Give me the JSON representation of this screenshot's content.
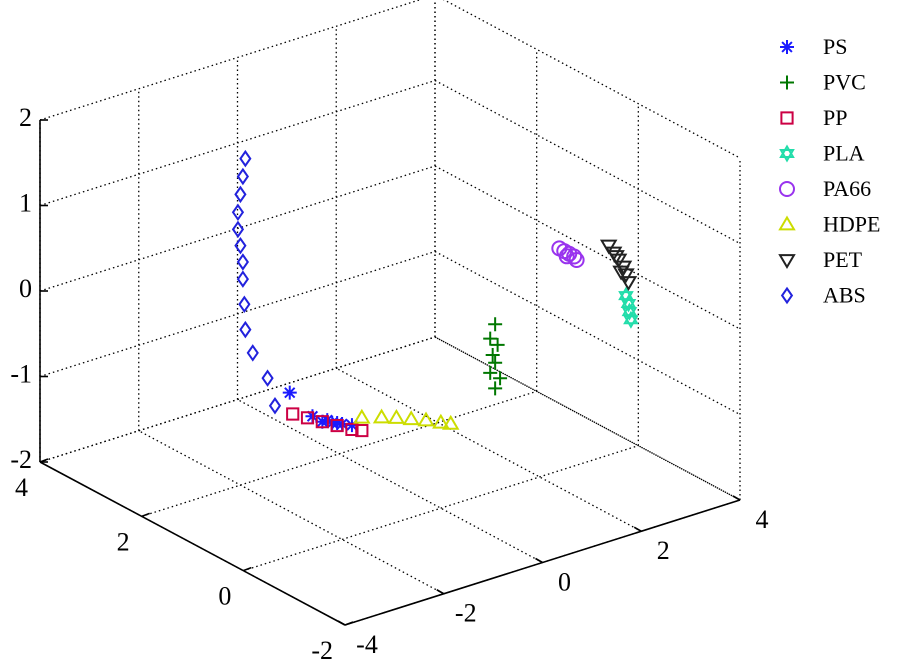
{
  "chart_data": {
    "type": "scatter3d",
    "xlim": [
      -4,
      4
    ],
    "ylim": [
      -2,
      4
    ],
    "zlim": [
      -2,
      2
    ],
    "xticks": [
      -4,
      -2,
      0,
      2,
      4
    ],
    "yticks": [
      -2,
      0,
      2,
      4
    ],
    "zticks": [
      -2,
      -1,
      0,
      1,
      2
    ],
    "grid": true,
    "legend": "right",
    "series": [
      {
        "name": "PS",
        "color": "#1a1aff",
        "marker": "asterisk",
        "x": [
          -3.06,
          -2.6,
          -2.4,
          -2.2,
          -2.0,
          -1.8,
          -2.3,
          -2.1
        ],
        "y": [
          0,
          0,
          0,
          0,
          0,
          0,
          0,
          0
        ],
        "z": [
          -0.09,
          -0.45,
          -0.55,
          -0.6,
          -0.65,
          -0.7,
          -0.55,
          -0.62
        ]
      },
      {
        "name": "PVC",
        "color": "#007700",
        "marker": "plus",
        "x": [
          1.1,
          1.0,
          1.15,
          1.05,
          1.1,
          1.0,
          1.2,
          1.1
        ],
        "y": [
          0,
          0,
          0,
          0,
          0,
          0,
          0,
          0
        ],
        "z": [
          -0.05,
          -0.2,
          -0.3,
          -0.4,
          -0.5,
          -0.6,
          -0.7,
          -0.8
        ]
      },
      {
        "name": "PP",
        "color": "#cc0044",
        "marker": "square",
        "x": [
          -3.0,
          -2.7,
          -2.4,
          -2.1,
          -1.8,
          -1.6
        ],
        "y": [
          0,
          0,
          0,
          0,
          0,
          0
        ],
        "z": [
          -0.35,
          -0.45,
          -0.55,
          -0.65,
          -0.75,
          -0.8
        ]
      },
      {
        "name": "PLA",
        "color": "#22ddaa",
        "marker": "hexagram",
        "x": [
          3.75,
          3.8,
          3.82,
          3.85
        ],
        "y": [
          0,
          0,
          0,
          0
        ],
        "z": [
          -0.2,
          -0.3,
          -0.4,
          -0.5
        ]
      },
      {
        "name": "PA66",
        "color": "#9933ee",
        "marker": "circle",
        "x": [
          2.4,
          2.5,
          2.6,
          2.7,
          2.75,
          2.55
        ],
        "y": [
          0,
          0,
          0,
          0,
          0,
          0
        ],
        "z": [
          0.6,
          0.55,
          0.5,
          0.45,
          0.4,
          0.48
        ]
      },
      {
        "name": "HDPE",
        "color": "#ccdd00",
        "marker": "triangle",
        "x": [
          -1.6,
          -1.2,
          -0.9,
          -0.6,
          -0.3,
          0.0,
          0.2
        ],
        "y": [
          0,
          0,
          0,
          0,
          0,
          0,
          0
        ],
        "z": [
          -0.65,
          -0.72,
          -0.78,
          -0.85,
          -0.92,
          -1.0,
          -1.05
        ]
      },
      {
        "name": "PET",
        "color": "#222222",
        "marker": "triangle-down",
        "x": [
          3.4,
          3.5,
          3.6,
          3.7,
          3.75,
          3.8,
          3.65,
          3.55
        ],
        "y": [
          0,
          0,
          0,
          0,
          0,
          0,
          0,
          0
        ],
        "z": [
          0.45,
          0.35,
          0.25,
          0.15,
          0.05,
          -0.05,
          0.1,
          0.3
        ]
      },
      {
        "name": "ABS",
        "color": "#2222dd",
        "marker": "diamond",
        "x": [
          -1.9,
          -1.95,
          -2.0,
          -2.05,
          -2.05,
          -2.0,
          -1.95,
          -1.95,
          -1.92,
          -1.9,
          -1.75,
          -1.45,
          -1.3
        ],
        "y": [
          2,
          2,
          2,
          2,
          2,
          2,
          2,
          2,
          2,
          2,
          2,
          2,
          2
        ],
        "z": [
          1.8,
          1.6,
          1.4,
          1.2,
          1.0,
          0.8,
          0.6,
          0.4,
          0.1,
          -0.2,
          -0.5,
          -0.85,
          -1.2
        ]
      }
    ]
  }
}
